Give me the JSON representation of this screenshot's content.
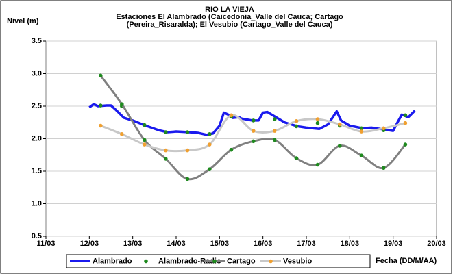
{
  "chart_data": {
    "type": "line",
    "title": [
      "RIO LA VIEJA",
      "Estaciones El Alambrado (Caicedonia_Valle del Cauca; Cartago",
      "(Pereira_Risaralda);  El Vesubio (Cartago_Valle del Cauca)"
    ],
    "y_label": "Nivel (m)",
    "x_label": "Fecha (DD/M/AA)",
    "xlim": [
      11,
      20
    ],
    "xticks": [
      {
        "value": 11,
        "label": "11/03"
      },
      {
        "value": 12,
        "label": "12/03"
      },
      {
        "value": 13,
        "label": "13/03"
      },
      {
        "value": 14,
        "label": "14/03"
      },
      {
        "value": 15,
        "label": "15/03"
      },
      {
        "value": 16,
        "label": "16/03"
      },
      {
        "value": 17,
        "label": "17/03"
      },
      {
        "value": 18,
        "label": "18/03"
      },
      {
        "value": 19,
        "label": "19/03"
      },
      {
        "value": 20,
        "label": "20/03"
      }
    ],
    "ylim": [
      0.5,
      3.5
    ],
    "yticks": [
      {
        "value": 0.5,
        "label": "0.5"
      },
      {
        "value": 1,
        "label": "1.0"
      },
      {
        "value": 1.5,
        "label": "1.5"
      },
      {
        "value": 2,
        "label": "2.0"
      },
      {
        "value": 2.5,
        "label": "2.5"
      },
      {
        "value": 3,
        "label": "3.0"
      },
      {
        "value": 3.5,
        "label": "3.5"
      }
    ],
    "grid": true,
    "series": [
      {
        "name": "Alambrado",
        "color": "#1a1aee",
        "line": true,
        "smooth": false,
        "x": [
          12.0,
          12.1,
          12.2,
          12.4,
          12.5,
          12.6,
          12.8,
          13.0,
          13.3,
          13.6,
          13.8,
          14.0,
          14.3,
          14.5,
          14.7,
          14.85,
          15.0,
          15.1,
          15.2,
          15.3,
          15.45,
          15.5,
          15.75,
          15.9,
          16.0,
          16.1,
          16.3,
          16.5,
          16.8,
          17.0,
          17.3,
          17.5,
          17.7,
          17.8,
          18.0,
          18.3,
          18.5,
          18.8,
          19.0,
          19.1,
          19.2,
          19.35,
          19.5
        ],
        "values": [
          2.48,
          2.53,
          2.5,
          2.51,
          2.51,
          2.45,
          2.32,
          2.28,
          2.2,
          2.13,
          2.1,
          2.11,
          2.1,
          2.09,
          2.06,
          2.08,
          2.2,
          2.4,
          2.37,
          2.32,
          2.33,
          2.31,
          2.28,
          2.28,
          2.4,
          2.41,
          2.33,
          2.25,
          2.19,
          2.17,
          2.15,
          2.22,
          2.42,
          2.28,
          2.2,
          2.16,
          2.17,
          2.14,
          2.12,
          2.25,
          2.37,
          2.33,
          2.43
        ]
      },
      {
        "name": "Alambrado-Radio",
        "color": "#1f8a1f",
        "line": false,
        "marker_color": "#1f8a1f",
        "x": [
          12.26,
          12.75,
          13.27,
          13.76,
          14.26,
          14.77,
          15.27,
          15.78,
          16.27,
          16.77,
          17.26,
          17.77,
          18.27,
          18.78,
          19.28
        ],
        "values": [
          2.51,
          2.5,
          2.21,
          2.1,
          2.1,
          2.07,
          2.34,
          2.28,
          2.3,
          2.19,
          2.24,
          2.2,
          2.16,
          2.13,
          2.36
        ]
      },
      {
        "name": "Cartago",
        "color": "#808080",
        "line": true,
        "smooth": true,
        "marker_color": "#1f8a1f",
        "x": [
          12.26,
          12.75,
          13.27,
          13.76,
          14.26,
          14.77,
          15.27,
          15.78,
          16.27,
          16.77,
          17.26,
          17.77,
          18.27,
          18.78,
          19.28
        ],
        "values": [
          2.97,
          2.53,
          1.98,
          1.69,
          1.38,
          1.53,
          1.83,
          1.96,
          1.98,
          1.7,
          1.6,
          1.89,
          1.74,
          1.55,
          1.91
        ]
      },
      {
        "name": "Vesubio",
        "color": "#c8c8c8",
        "line": true,
        "smooth": true,
        "marker_color": "#f0a030",
        "x": [
          12.26,
          12.75,
          13.27,
          13.76,
          14.26,
          14.77,
          15.27,
          15.78,
          16.27,
          16.77,
          17.26,
          17.77,
          18.27,
          18.78,
          19.28
        ],
        "values": [
          2.2,
          2.07,
          1.91,
          1.82,
          1.82,
          1.91,
          2.36,
          2.12,
          2.12,
          2.27,
          2.3,
          2.22,
          2.11,
          2.16,
          2.24
        ]
      }
    ]
  }
}
